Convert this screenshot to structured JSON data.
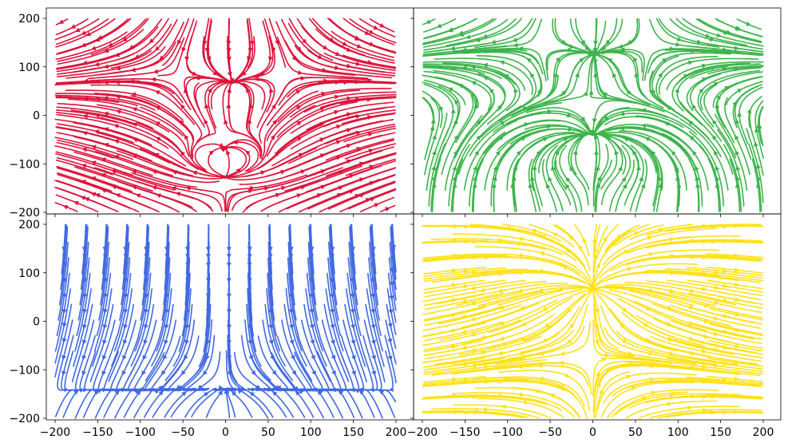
{
  "figure": {
    "layout": "2x2 grid",
    "shared_axes": true
  },
  "chart_data": [
    {
      "type": "streamplot",
      "panel": "top-left",
      "color": "#dc143c",
      "xlim": [
        -200,
        200
      ],
      "ylim": [
        -200,
        200
      ],
      "x_ticks": [],
      "y_ticks": [
        -200,
        -100,
        0,
        100,
        200
      ],
      "features": [
        {
          "kind": "saddle",
          "x": -60,
          "y": 85
        },
        {
          "kind": "saddle",
          "x": 75,
          "y": 85
        },
        {
          "kind": "sink",
          "x": 0,
          "y": -85
        },
        {
          "kind": "source",
          "x": 0,
          "y": -120
        },
        {
          "kind": "saddle",
          "x": 0,
          "y": -155
        }
      ]
    },
    {
      "type": "streamplot",
      "panel": "top-right",
      "color": "#3cb44b",
      "xlim": [
        -200,
        200
      ],
      "ylim": [
        -200,
        200
      ],
      "x_ticks": [],
      "y_ticks": [],
      "features": [
        {
          "kind": "saddle",
          "x": -65,
          "y": 145
        },
        {
          "kind": "saddle",
          "x": 70,
          "y": 145
        },
        {
          "kind": "sink",
          "x": -20,
          "y": -55
        },
        {
          "kind": "sink",
          "x": 20,
          "y": -55
        },
        {
          "kind": "source",
          "x": 0,
          "y": -110
        }
      ]
    },
    {
      "type": "streamplot",
      "panel": "bottom-left",
      "color": "#4169e1",
      "xlim": [
        -200,
        200
      ],
      "ylim": [
        -200,
        200
      ],
      "x_ticks": [
        -200,
        -150,
        -100,
        -50,
        0,
        50,
        100,
        150,
        200
      ],
      "y_ticks": [
        -200,
        -100,
        0,
        100,
        200
      ],
      "features": [
        {
          "kind": "sink",
          "x": 0,
          "y": -160
        },
        {
          "kind": "saddle",
          "x": 0,
          "y": -120
        }
      ]
    },
    {
      "type": "streamplot",
      "panel": "bottom-right",
      "color": "#ffe119",
      "xlim": [
        -200,
        200
      ],
      "ylim": [
        -200,
        200
      ],
      "x_ticks": [
        -200,
        -150,
        -100,
        -50,
        0,
        50,
        100,
        150,
        200
      ],
      "y_ticks": [],
      "features": [
        {
          "kind": "saddle",
          "x": 0,
          "y": -65
        },
        {
          "kind": "source",
          "x": 0,
          "y": 60
        }
      ]
    }
  ]
}
